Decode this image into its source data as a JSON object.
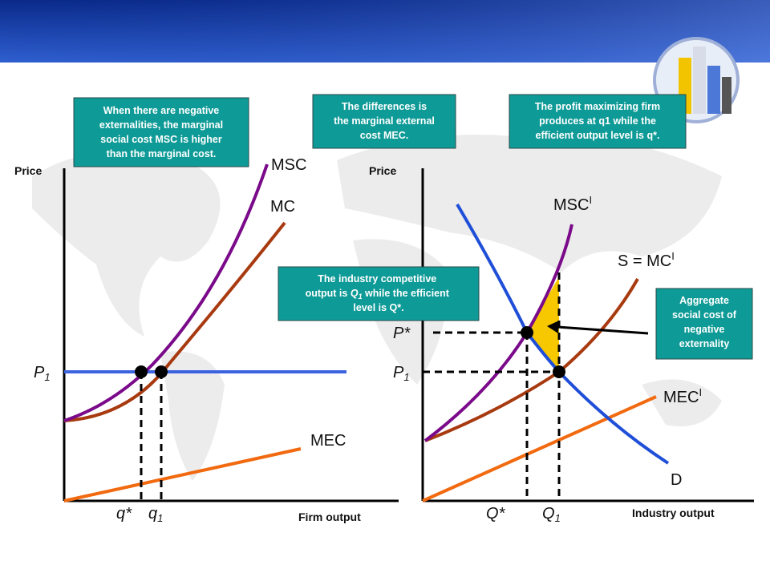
{
  "notes": {
    "left_box": [
      "When there are negative",
      "externalities, the marginal",
      "social cost MSC is higher",
      "than the marginal cost."
    ],
    "middle_box": [
      "The differences is",
      "the marginal external",
      "cost MEC."
    ],
    "right_box": [
      "The profit maximizing firm",
      "produces at q1 while the",
      "efficient output level is q*."
    ],
    "industry_box": {
      "line1": "The industry competitive",
      "line2": [
        "output is ",
        "Q",
        "1",
        " while the efficient"
      ],
      "line3": "level is Q*."
    },
    "aggregate_box": [
      "Aggregate",
      "social cost of",
      "negative",
      "externality"
    ]
  },
  "firm_panel": {
    "y_label": "Price",
    "x_label": "Firm output",
    "msc": "MSC",
    "mc": "MC",
    "mec": "MEC",
    "p1": {
      "main": "P",
      "sub": "1"
    },
    "q_star": "q*",
    "q1": {
      "main": "q",
      "sub": "1"
    }
  },
  "industry_panel": {
    "y_label": "Price",
    "x_label": "Industry output",
    "msc": {
      "main": "MSC",
      "sup": "I"
    },
    "supply": {
      "main": "S = MC",
      "sup": "I"
    },
    "mec": {
      "main": "MEC",
      "sup": "I"
    },
    "demand": "D",
    "p_star": "P*",
    "p1": {
      "main": "P",
      "sub": "1"
    },
    "q_star": "Q*",
    "q1": {
      "main": "Q",
      "sub": "1"
    }
  }
}
